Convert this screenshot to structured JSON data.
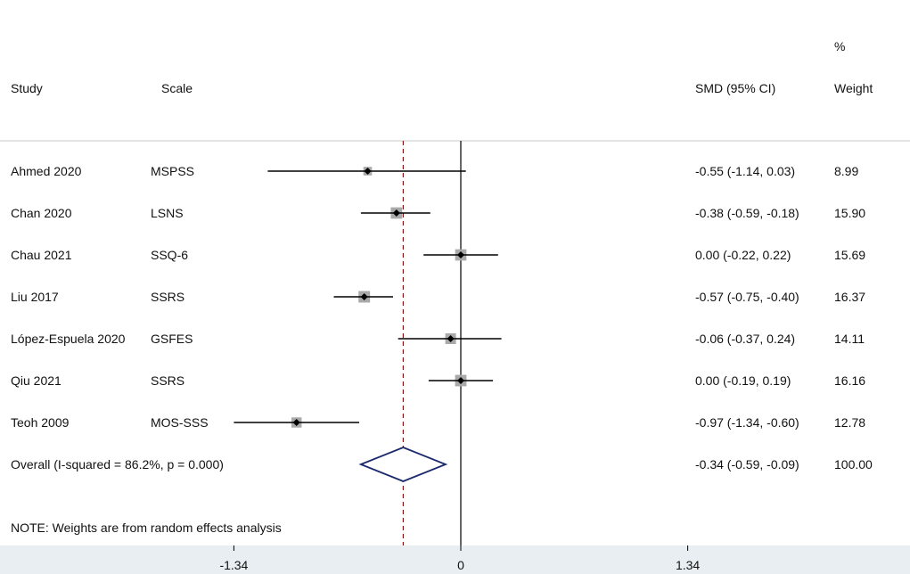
{
  "header": {
    "study": "Study",
    "scale": "Scale",
    "smd": "SMD (95% CI)",
    "weight_pct": "%",
    "weight": "Weight"
  },
  "chart_data": {
    "type": "forest",
    "xlabel": "",
    "xlim": [
      -2.0,
      2.0
    ],
    "x_ticks": [
      -1.34,
      0,
      1.34
    ],
    "x_tick_labels": [
      "-1.34",
      "0",
      "1.34"
    ],
    "studies": [
      {
        "study": "Ahmed 2020",
        "scale": "MSPSS",
        "smd": -0.55,
        "lo": -1.14,
        "hi": 0.03,
        "ci_text": "-0.55 (-1.14, 0.03)",
        "weight": 8.99,
        "weight_text": "8.99"
      },
      {
        "study": "Chan 2020",
        "scale": "LSNS",
        "smd": -0.38,
        "lo": -0.59,
        "hi": -0.18,
        "ci_text": "-0.38 (-0.59, -0.18)",
        "weight": 15.9,
        "weight_text": "15.90"
      },
      {
        "study": "Chau 2021",
        "scale": "SSQ-6",
        "smd": 0.0,
        "lo": -0.22,
        "hi": 0.22,
        "ci_text": "0.00 (-0.22, 0.22)",
        "weight": 15.69,
        "weight_text": "15.69"
      },
      {
        "study": "Liu 2017",
        "scale": "SSRS",
        "smd": -0.57,
        "lo": -0.75,
        "hi": -0.4,
        "ci_text": "-0.57 (-0.75, -0.40)",
        "weight": 16.37,
        "weight_text": "16.37"
      },
      {
        "study": "López-Espuela 2020",
        "scale": "GSFES",
        "smd": -0.06,
        "lo": -0.37,
        "hi": 0.24,
        "ci_text": "-0.06 (-0.37, 0.24)",
        "weight": 14.11,
        "weight_text": "14.11"
      },
      {
        "study": "Qiu 2021",
        "scale": "SSRS",
        "smd": 0.0,
        "lo": -0.19,
        "hi": 0.19,
        "ci_text": "0.00 (-0.19, 0.19)",
        "weight": 16.16,
        "weight_text": "16.16"
      },
      {
        "study": "Teoh 2009",
        "scale": "MOS-SSS",
        "smd": -0.97,
        "lo": -1.34,
        "hi": -0.6,
        "ci_text": "-0.97 (-1.34, -0.60)",
        "weight": 12.78,
        "weight_text": "12.78"
      }
    ],
    "overall": {
      "label": "Overall  (I-squared = 86.2%, p = 0.000)",
      "smd": -0.34,
      "lo": -0.59,
      "hi": -0.09,
      "ci_text": "-0.34 (-0.59, -0.09)",
      "weight_text": "100.00"
    },
    "note": "NOTE: Weights are from random effects analysis",
    "colors": {
      "null_line": "#000000",
      "overall_line": "#8b1a1a",
      "diamond": "#1a2a6c",
      "weight_box": "#a9a9a9",
      "axis_band": "#e8eef1",
      "separator": "#c8c8c8"
    }
  }
}
